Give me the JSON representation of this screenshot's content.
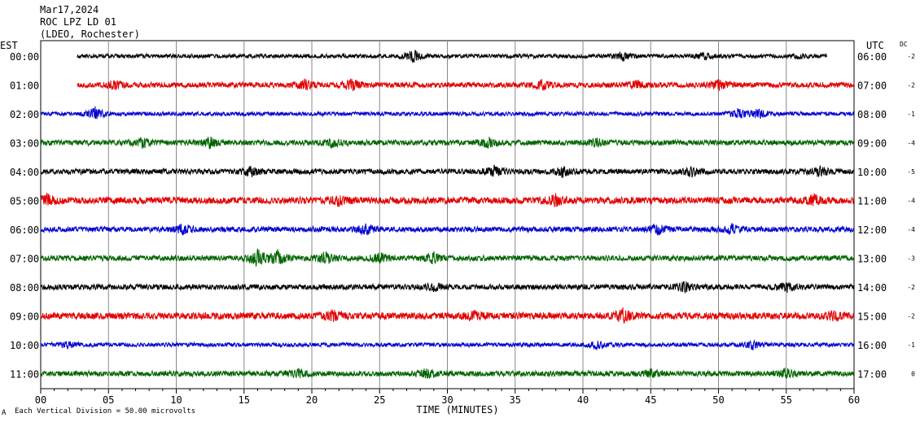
{
  "header": {
    "date": "Mar17,2024",
    "station": "ROC LPZ LD 01",
    "network": "(LDEO, Rochester)"
  },
  "footer": {
    "scale_marker": "A",
    "scale_note": "Each Vertical Division =   50.00 microvolts"
  },
  "colors": {
    "black": "#000000",
    "red": "#e00000",
    "blue": "#0000d0",
    "green": "#006400",
    "grid": "#888888"
  },
  "chart_data": {
    "type": "line",
    "title": "ROC LPZ LD 01",
    "xlabel": "TIME (MINUTES)",
    "left_axis_label": "EST",
    "right_axis_label": "UTC",
    "dc_label": "DC",
    "xlim": [
      0,
      60
    ],
    "x_ticks": [
      "00",
      "05",
      "10",
      "15",
      "20",
      "25",
      "30",
      "35",
      "40",
      "45",
      "50",
      "55",
      "60"
    ],
    "traces": [
      {
        "est": "00:00",
        "utc": "06:00",
        "dc": "-2",
        "color": "black",
        "start": 2.7,
        "end": 58.0,
        "amp": 3,
        "bursts": [
          [
            27.5,
            9
          ],
          [
            43,
            6
          ],
          [
            49,
            4
          ],
          [
            56,
            3
          ]
        ]
      },
      {
        "est": "01:00",
        "utc": "07:00",
        "dc": "-2",
        "color": "red",
        "start": 2.7,
        "end": 60,
        "amp": 4,
        "bursts": [
          [
            5.5,
            6
          ],
          [
            19.5,
            7
          ],
          [
            23,
            8
          ],
          [
            37,
            7
          ],
          [
            44,
            5
          ],
          [
            50,
            6
          ]
        ]
      },
      {
        "est": "02:00",
        "utc": "08:00",
        "dc": "-1",
        "color": "blue",
        "start": 0,
        "end": 60,
        "amp": 3,
        "bursts": [
          [
            4,
            9
          ],
          [
            51.5,
            7
          ],
          [
            53,
            6
          ]
        ]
      },
      {
        "est": "03:00",
        "utc": "09:00",
        "dc": "-4",
        "color": "green",
        "start": 0,
        "end": 60,
        "amp": 4,
        "bursts": [
          [
            7.5,
            6
          ],
          [
            12.5,
            7
          ],
          [
            21.5,
            6
          ],
          [
            33,
            7
          ],
          [
            41,
            5
          ]
        ]
      },
      {
        "est": "04:00",
        "utc": "10:00",
        "dc": "-5",
        "color": "black",
        "start": 0,
        "end": 60,
        "amp": 4,
        "bursts": [
          [
            15.5,
            6
          ],
          [
            33.5,
            7
          ],
          [
            38.5,
            6
          ],
          [
            48,
            6
          ],
          [
            57.5,
            6
          ]
        ]
      },
      {
        "est": "05:00",
        "utc": "11:00",
        "dc": "-4",
        "color": "red",
        "start": 0,
        "end": 60,
        "amp": 5,
        "bursts": [
          [
            0.5,
            7
          ],
          [
            38,
            7
          ],
          [
            57,
            7
          ],
          [
            22,
            6
          ]
        ]
      },
      {
        "est": "06:00",
        "utc": "12:00",
        "dc": "-4",
        "color": "blue",
        "start": 0,
        "end": 60,
        "amp": 4,
        "bursts": [
          [
            10.5,
            7
          ],
          [
            24,
            7
          ],
          [
            45.5,
            7
          ],
          [
            51,
            6
          ]
        ]
      },
      {
        "est": "07:00",
        "utc": "13:00",
        "dc": "-3",
        "color": "green",
        "start": 0,
        "end": 60,
        "amp": 4,
        "bursts": [
          [
            16,
            12
          ],
          [
            17.5,
            9
          ],
          [
            21,
            8
          ],
          [
            25,
            7
          ],
          [
            29,
            7
          ]
        ]
      },
      {
        "est": "08:00",
        "utc": "14:00",
        "dc": "-2",
        "color": "black",
        "start": 0,
        "end": 60,
        "amp": 4,
        "bursts": [
          [
            47.5,
            7
          ],
          [
            55,
            6
          ],
          [
            29,
            5
          ]
        ]
      },
      {
        "est": "09:00",
        "utc": "15:00",
        "dc": "-2",
        "color": "red",
        "start": 0,
        "end": 60,
        "amp": 5,
        "bursts": [
          [
            43,
            9
          ],
          [
            21.5,
            7
          ],
          [
            58.5,
            6
          ],
          [
            32,
            6
          ]
        ]
      },
      {
        "est": "10:00",
        "utc": "16:00",
        "dc": "-1",
        "color": "blue",
        "start": 0,
        "end": 60,
        "amp": 3,
        "bursts": [
          [
            41,
            6
          ],
          [
            52.5,
            6
          ],
          [
            2,
            4
          ]
        ]
      },
      {
        "est": "11:00",
        "utc": "17:00",
        "dc": "0",
        "color": "green",
        "start": 0,
        "end": 60,
        "amp": 4,
        "bursts": [
          [
            19,
            6
          ],
          [
            28.5,
            6
          ],
          [
            55,
            6
          ],
          [
            45,
            5
          ]
        ]
      }
    ]
  }
}
